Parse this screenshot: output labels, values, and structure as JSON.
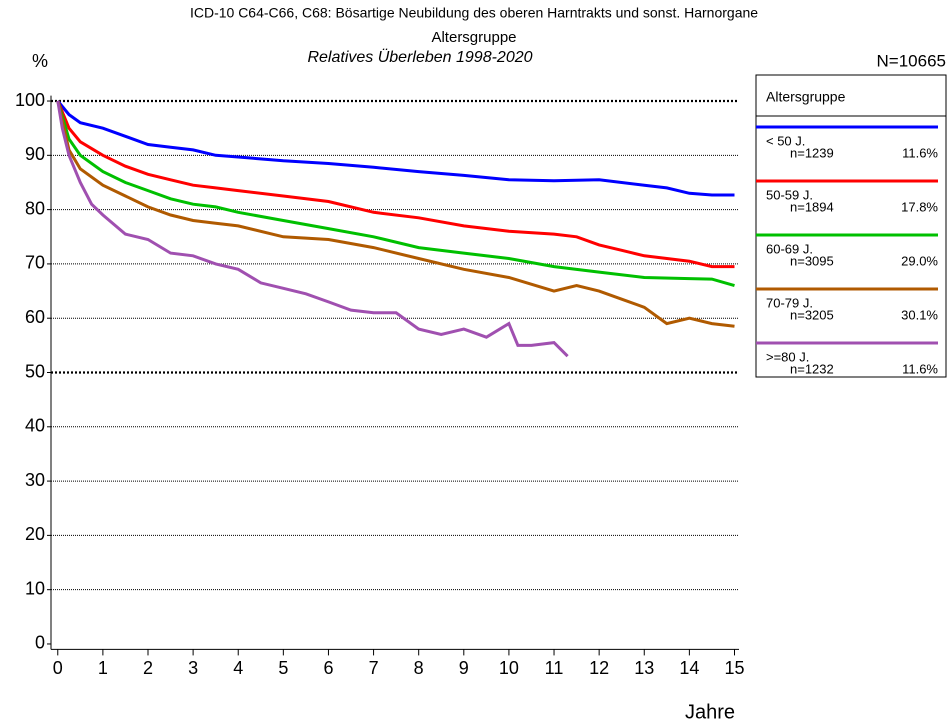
{
  "chart_data": {
    "type": "line",
    "title": "ICD-10 C64-C66, C68: Bösartige Neubildung des oberen Harntrakts und sonst. Harnorgane",
    "subtitle": "Altersgruppe",
    "subtitle2": "Relatives Überleben 1998-2020",
    "y_label": "%",
    "x_label": "Jahre",
    "total": "N=10665",
    "legend_title": "Altersgruppe",
    "xlim": [
      -0.15,
      15.1
    ],
    "ylim": [
      -1,
      101
    ],
    "xticks": [
      0,
      1,
      2,
      3,
      4,
      5,
      6,
      7,
      8,
      9,
      10,
      11,
      12,
      13,
      14,
      15
    ],
    "yticks": [
      0,
      10,
      20,
      30,
      40,
      50,
      60,
      70,
      80,
      90,
      100
    ],
    "emphasized_grid": [
      50,
      100
    ],
    "grid": true,
    "series": [
      {
        "name": "< 50 J.",
        "n": "n=1239",
        "share": "11.6%",
        "color": "#0000ff",
        "x": [
          0,
          0.25,
          0.5,
          1,
          1.5,
          2,
          2.5,
          3,
          3.5,
          4,
          5,
          6,
          7,
          8,
          9,
          10,
          11,
          12,
          13,
          13.5,
          14,
          14.5,
          15
        ],
        "values": [
          100,
          97.5,
          96,
          95,
          93.5,
          92,
          91.5,
          91,
          90,
          89.7,
          89,
          88.5,
          87.8,
          87,
          86.3,
          85.5,
          85.3,
          85.5,
          84.5,
          84,
          83,
          82.7,
          82.7
        ]
      },
      {
        "name": "50-59 J.",
        "n": "n=1894",
        "share": "17.8%",
        "color": "#ff0000",
        "x": [
          0,
          0.25,
          0.5,
          1,
          1.5,
          2,
          2.5,
          3,
          3.5,
          4,
          5,
          6,
          7,
          8,
          9,
          10,
          11,
          11.5,
          12,
          12.5,
          13,
          14,
          14.5,
          15
        ],
        "values": [
          100,
          95,
          92.5,
          90,
          88,
          86.5,
          85.5,
          84.5,
          84,
          83.5,
          82.5,
          81.5,
          79.5,
          78.5,
          77,
          76,
          75.5,
          75,
          73.5,
          72.5,
          71.5,
          70.5,
          69.5,
          69.5
        ]
      },
      {
        "name": "60-69 J.",
        "n": "n=3095",
        "share": "29.0%",
        "color": "#00c000",
        "x": [
          0,
          0.25,
          0.5,
          1,
          1.5,
          2,
          2.5,
          3,
          3.5,
          4,
          5,
          6,
          7,
          8,
          9,
          10,
          11,
          12,
          13,
          14,
          14.5,
          15
        ],
        "values": [
          100,
          93,
          90,
          87,
          85,
          83.5,
          82,
          81,
          80.5,
          79.5,
          78,
          76.5,
          75,
          73,
          72,
          71,
          69.5,
          68.5,
          67.5,
          67.3,
          67.2,
          66
        ]
      },
      {
        "name": "70-79 J.",
        "n": "n=3205",
        "share": "30.1%",
        "color": "#b05a00",
        "x": [
          0,
          0.25,
          0.5,
          1,
          1.5,
          2,
          2.5,
          3,
          3.5,
          4,
          5,
          6,
          7,
          8,
          9,
          10,
          11,
          11.5,
          12,
          12.5,
          13,
          13.5,
          14,
          14.5,
          15
        ],
        "values": [
          100,
          91,
          87.5,
          84.5,
          82.5,
          80.5,
          79,
          78,
          77.5,
          77,
          75,
          74.5,
          73,
          71,
          69,
          67.5,
          65,
          66,
          65,
          63.5,
          62,
          59,
          60,
          59,
          58.5
        ]
      },
      {
        "name": ">=80 J.",
        "n": "n=1232",
        "share": "11.6%",
        "color": "#a050b0",
        "x": [
          0,
          0.1,
          0.25,
          0.5,
          0.75,
          1,
          1.5,
          2,
          2.5,
          3,
          3.5,
          4,
          4.5,
          5,
          5.5,
          6,
          6.5,
          7,
          7.5,
          8,
          8.5,
          9,
          9.5,
          10,
          10.2,
          10.5,
          11,
          11.3
        ],
        "values": [
          100,
          95,
          90,
          85,
          81,
          79,
          75.5,
          74.5,
          72,
          71.5,
          70,
          69,
          66.5,
          65.5,
          64.5,
          63,
          61.5,
          61,
          61,
          58,
          57,
          58,
          56.5,
          59,
          55,
          55,
          55.5,
          53
        ]
      }
    ]
  }
}
